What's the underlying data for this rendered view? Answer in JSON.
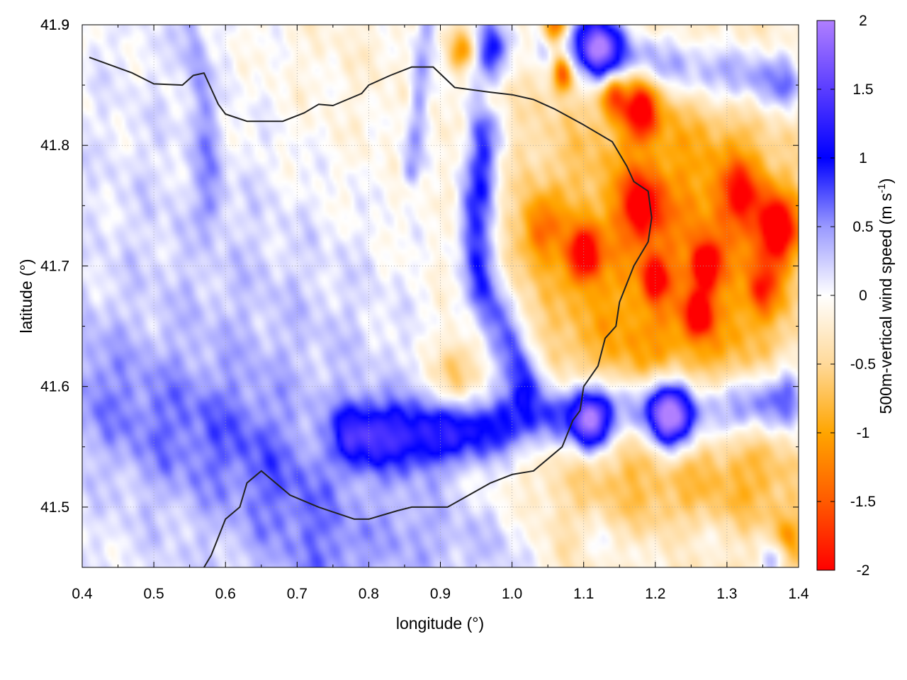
{
  "chart_data": {
    "type": "heatmap",
    "xlabel": "longitude (°)",
    "ylabel": "latitude (°)",
    "colorbar_label": {
      "text": "500m-vertical wind speed (m s",
      "sup": "-1",
      "close": ")"
    },
    "xlim": [
      0.4,
      1.4
    ],
    "ylim": [
      41.45,
      41.9
    ],
    "x_ticks": [
      "0.4",
      "0.5",
      "0.6",
      "0.7",
      "0.8",
      "0.9",
      "1.0",
      "1.1",
      "1.2",
      "1.3",
      "1.4"
    ],
    "y_ticks": [
      "41.5",
      "41.6",
      "41.7",
      "41.8",
      "41.9"
    ],
    "colorbar_range": [
      -2,
      2
    ],
    "colorbar_ticks": [
      "2",
      "1.5",
      "1",
      "0.5",
      "0",
      "-0.5",
      "-1",
      "-1.5",
      "-2"
    ],
    "colorscale": [
      {
        "value": -2,
        "color": "#ff0000"
      },
      {
        "value": -1.5,
        "color": "#ff5a00"
      },
      {
        "value": -1,
        "color": "#ffa500"
      },
      {
        "value": -0.5,
        "color": "#ffd999"
      },
      {
        "value": 0,
        "color": "#ffffff"
      },
      {
        "value": 0.5,
        "color": "#9999ff"
      },
      {
        "value": 1,
        "color": "#0000ff"
      },
      {
        "value": 1.5,
        "color": "#5a3dff"
      },
      {
        "value": 2,
        "color": "#b07fff"
      }
    ],
    "grid": true,
    "field_features": [
      {
        "kind": "updraft_band",
        "path": [
          [
            0.97,
            41.88
          ],
          [
            0.96,
            41.8
          ],
          [
            0.95,
            41.74
          ],
          [
            0.96,
            41.68
          ],
          [
            0.99,
            41.64
          ],
          [
            1.02,
            41.61
          ]
        ],
        "value": 1.1,
        "width": 0.018
      },
      {
        "kind": "updraft_band",
        "path": [
          [
            0.78,
            41.56
          ],
          [
            0.9,
            41.56
          ],
          [
            1.0,
            41.57
          ],
          [
            1.1,
            41.58
          ],
          [
            1.2,
            41.58
          ],
          [
            1.3,
            41.58
          ],
          [
            1.38,
            41.59
          ]
        ],
        "value": 1.2,
        "width": 0.02
      },
      {
        "kind": "updraft_band",
        "path": [
          [
            0.4,
            41.6
          ],
          [
            0.5,
            41.57
          ],
          [
            0.62,
            41.55
          ],
          [
            0.7,
            41.5
          ],
          [
            0.75,
            41.46
          ]
        ],
        "value": 0.4,
        "width": 0.04
      },
      {
        "kind": "updraft_band",
        "path": [
          [
            1.05,
            41.89
          ],
          [
            1.12,
            41.88
          ],
          [
            1.2,
            41.87
          ],
          [
            1.28,
            41.86
          ],
          [
            1.38,
            41.85
          ]
        ],
        "value": 0.9,
        "width": 0.018
      },
      {
        "kind": "updraft_band",
        "path": [
          [
            0.88,
            41.9
          ],
          [
            0.87,
            41.84
          ],
          [
            0.86,
            41.78
          ]
        ],
        "value": 0.6,
        "width": 0.01
      },
      {
        "kind": "updraft_band",
        "path": [
          [
            0.55,
            41.9
          ],
          [
            0.57,
            41.82
          ],
          [
            0.58,
            41.75
          ]
        ],
        "value": 0.4,
        "width": 0.012
      },
      {
        "kind": "updraft_band",
        "path": [
          [
            0.85,
            41.48
          ],
          [
            0.95,
            41.47
          ],
          [
            1.0,
            41.46
          ]
        ],
        "value": 0.3,
        "width": 0.03
      },
      {
        "kind": "updraft_band",
        "path": [
          [
            1.12,
            41.47
          ],
          [
            1.2,
            41.46
          ],
          [
            1.28,
            41.47
          ],
          [
            1.35,
            41.47
          ]
        ],
        "value": 0.4,
        "width": 0.02
      },
      {
        "kind": "updraft_blob",
        "center": [
          1.11,
          41.57
        ],
        "value": 1.8,
        "radius": 0.018
      },
      {
        "kind": "updraft_blob",
        "center": [
          1.22,
          41.575
        ],
        "value": 1.9,
        "radius": 0.022
      },
      {
        "kind": "updraft_blob",
        "center": [
          1.12,
          41.88
        ],
        "value": 1.6,
        "radius": 0.02
      },
      {
        "kind": "updraft_blob",
        "center": [
          1.37,
          41.46
        ],
        "value": 1.0,
        "radius": 0.012
      },
      {
        "kind": "updraft_area",
        "center": [
          0.68,
          41.64
        ],
        "value": 0.35,
        "radius": 0.2
      },
      {
        "kind": "downdraft_area",
        "center": [
          1.15,
          41.7
        ],
        "value": -0.8,
        "radius": 0.15
      },
      {
        "kind": "downdraft_area",
        "center": [
          1.3,
          41.72
        ],
        "value": -0.6,
        "radius": 0.1
      },
      {
        "kind": "downdraft_area",
        "center": [
          0.75,
          41.85
        ],
        "value": -0.3,
        "radius": 0.12
      },
      {
        "kind": "downdraft_area",
        "center": [
          1.2,
          41.5
        ],
        "value": -0.4,
        "radius": 0.1
      },
      {
        "kind": "downdraft_area",
        "center": [
          1.35,
          41.5
        ],
        "value": -0.5,
        "radius": 0.05
      },
      {
        "kind": "downdraft_blob",
        "center": [
          1.06,
          41.9
        ],
        "value": -1.8,
        "radius": 0.014
      },
      {
        "kind": "downdraft_blob",
        "center": [
          1.07,
          41.86
        ],
        "value": -1.5,
        "radius": 0.01
      },
      {
        "kind": "downdraft_blob",
        "center": [
          1.18,
          41.83
        ],
        "value": -1.6,
        "radius": 0.018
      },
      {
        "kind": "downdraft_blob",
        "center": [
          1.14,
          41.84
        ],
        "value": -1.2,
        "radius": 0.012
      },
      {
        "kind": "downdraft_blob",
        "center": [
          1.18,
          41.75
        ],
        "value": -1.4,
        "radius": 0.02
      },
      {
        "kind": "downdraft_blob",
        "center": [
          1.1,
          41.71
        ],
        "value": -1.7,
        "radius": 0.016
      },
      {
        "kind": "downdraft_blob",
        "center": [
          1.27,
          41.7
        ],
        "value": -1.7,
        "radius": 0.013
      },
      {
        "kind": "downdraft_blob",
        "center": [
          1.26,
          41.66
        ],
        "value": -1.6,
        "radius": 0.012
      },
      {
        "kind": "downdraft_blob",
        "center": [
          1.37,
          41.73
        ],
        "value": -1.8,
        "radius": 0.02
      },
      {
        "kind": "downdraft_blob",
        "center": [
          1.2,
          41.69
        ],
        "value": -1.2,
        "radius": 0.012
      },
      {
        "kind": "downdraft_blob",
        "center": [
          1.32,
          41.76
        ],
        "value": -1.1,
        "radius": 0.02
      },
      {
        "kind": "downdraft_blob",
        "center": [
          1.35,
          41.68
        ],
        "value": -1.0,
        "radius": 0.015
      },
      {
        "kind": "downdraft_blob",
        "center": [
          1.04,
          41.73
        ],
        "value": -0.9,
        "radius": 0.02
      },
      {
        "kind": "downdraft_blob",
        "center": [
          0.93,
          41.88
        ],
        "value": -1.0,
        "radius": 0.012
      },
      {
        "kind": "downdraft_blob",
        "center": [
          0.97,
          41.84
        ],
        "value": -0.9,
        "radius": 0.015
      },
      {
        "kind": "downdraft_blob",
        "center": [
          0.92,
          41.61
        ],
        "value": -0.7,
        "radius": 0.02
      },
      {
        "kind": "downdraft_blob",
        "center": [
          1.38,
          41.47
        ],
        "value": -0.9,
        "radius": 0.015
      }
    ],
    "contours": [
      [
        [
          0.41,
          41.873
        ],
        [
          0.47,
          41.86
        ],
        [
          0.5,
          41.851
        ],
        [
          0.54,
          41.85
        ],
        [
          0.555,
          41.858
        ],
        [
          0.57,
          41.86
        ],
        [
          0.59,
          41.834
        ],
        [
          0.6,
          41.826
        ],
        [
          0.63,
          41.82
        ],
        [
          0.68,
          41.82
        ],
        [
          0.71,
          41.827
        ],
        [
          0.73,
          41.834
        ],
        [
          0.75,
          41.833
        ],
        [
          0.77,
          41.838
        ],
        [
          0.79,
          41.843
        ],
        [
          0.8,
          41.85
        ],
        [
          0.83,
          41.858
        ],
        [
          0.86,
          41.865
        ],
        [
          0.89,
          41.865
        ],
        [
          0.92,
          41.848
        ],
        [
          0.97,
          41.844
        ],
        [
          1.0,
          41.842
        ],
        [
          1.03,
          41.838
        ],
        [
          1.06,
          41.83
        ],
        [
          1.1,
          41.817
        ],
        [
          1.14,
          41.803
        ],
        [
          1.16,
          41.783
        ],
        [
          1.17,
          41.77
        ],
        [
          1.19,
          41.762
        ],
        [
          1.195,
          41.74
        ],
        [
          1.19,
          41.72
        ],
        [
          1.17,
          41.7
        ],
        [
          1.15,
          41.67
        ],
        [
          1.145,
          41.65
        ],
        [
          1.13,
          41.64
        ],
        [
          1.12,
          41.617
        ],
        [
          1.1,
          41.6
        ],
        [
          1.095,
          41.58
        ],
        [
          1.085,
          41.572
        ],
        [
          1.07,
          41.55
        ],
        [
          1.05,
          41.54
        ],
        [
          1.03,
          41.53
        ],
        [
          1.0,
          41.527
        ],
        [
          0.97,
          41.52
        ],
        [
          0.94,
          41.51
        ],
        [
          0.91,
          41.5
        ],
        [
          0.89,
          41.5
        ],
        [
          0.86,
          41.5
        ],
        [
          0.84,
          41.497
        ],
        [
          0.8,
          41.49
        ],
        [
          0.78,
          41.49
        ],
        [
          0.73,
          41.5
        ],
        [
          0.69,
          41.51
        ],
        [
          0.67,
          41.52
        ],
        [
          0.65,
          41.53
        ],
        [
          0.63,
          41.52
        ],
        [
          0.62,
          41.5
        ],
        [
          0.6,
          41.49
        ],
        [
          0.58,
          41.46
        ],
        [
          0.57,
          41.45
        ]
      ]
    ]
  }
}
